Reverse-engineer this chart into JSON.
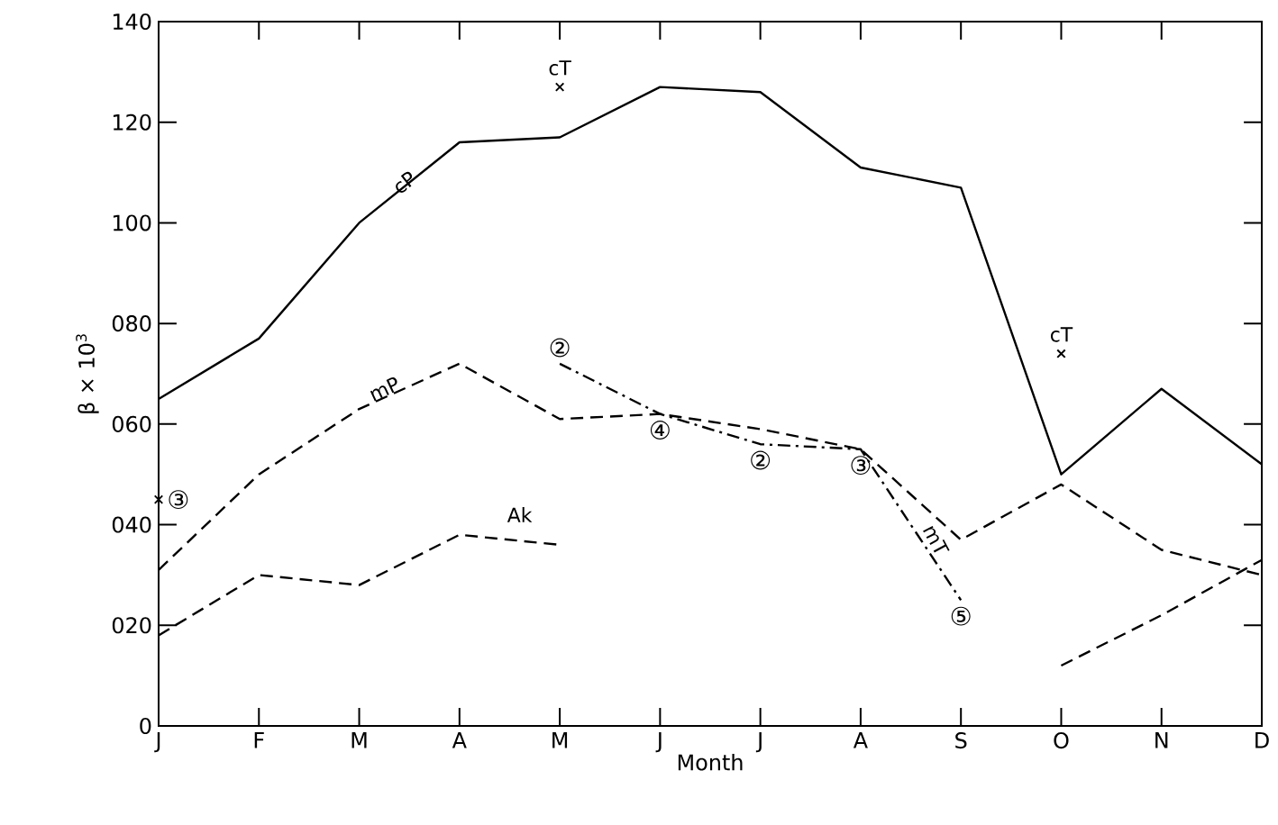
{
  "chart_data": {
    "type": "line",
    "categories": [
      "J",
      "F",
      "M",
      "A",
      "M",
      "J",
      "J",
      "A",
      "S",
      "O",
      "N",
      "D"
    ],
    "xlabel": "Month",
    "ylabel": "β × 10$^{3}$",
    "ylim": [
      0,
      140
    ],
    "yticks": [
      0,
      {
        "value": 20,
        "label": "020"
      },
      {
        "value": 40,
        "label": "040"
      },
      {
        "value": 60,
        "label": "060"
      },
      {
        "value": 80,
        "label": "080"
      },
      100,
      120,
      140
    ],
    "series": [
      {
        "name": "cP",
        "color": "#000000",
        "line_style": "solid",
        "marker": "none",
        "values": [
          65,
          77,
          100,
          116,
          117,
          127,
          126,
          111,
          107,
          50,
          67,
          52
        ]
      },
      {
        "name": "mP",
        "color": "#000000",
        "line_style": "dashed",
        "marker": "none",
        "values": [
          31,
          50,
          63,
          72,
          61,
          62,
          59,
          55,
          37,
          48,
          35,
          30
        ]
      },
      {
        "name": "Ak",
        "color": "#000000",
        "line_style": "dashed",
        "marker": "none",
        "values": [
          18,
          30,
          28,
          38,
          36,
          null,
          null,
          null,
          null,
          12,
          22,
          33
        ]
      },
      {
        "name": "mT",
        "color": "#000000",
        "line_style": "dashdot",
        "marker": "none",
        "values": [
          null,
          null,
          null,
          null,
          72,
          62,
          56,
          55,
          25,
          null,
          null,
          null
        ],
        "value_labels": [
          null,
          null,
          null,
          null,
          "②",
          "④",
          "②",
          "③",
          "⑤",
          null,
          null,
          null
        ]
      },
      {
        "name": "cT",
        "type": "scatter",
        "color": "#000000",
        "marker": "cross",
        "values": [
          null,
          null,
          null,
          null,
          127,
          null,
          null,
          null,
          null,
          74,
          null,
          null
        ]
      },
      {
        "type": "scatter",
        "color": "#000000",
        "marker": "cross",
        "values": [
          45,
          null,
          null,
          null,
          null,
          null,
          null,
          null,
          null,
          null,
          null,
          null
        ],
        "value_labels": [
          "③",
          null,
          null,
          null,
          null,
          null,
          null,
          null,
          null,
          null,
          null,
          null
        ]
      }
    ]
  }
}
